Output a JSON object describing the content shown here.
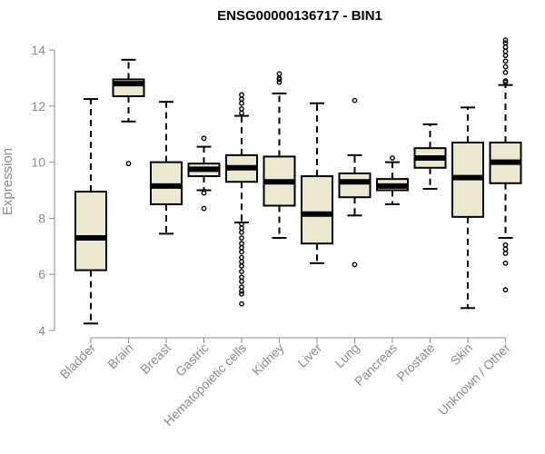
{
  "chart_data": {
    "type": "boxplot",
    "title": "ENSG00000136717 - BIN1",
    "xlabel": "",
    "ylabel": "Expression",
    "ylim": [
      4,
      14
    ],
    "yticks": [
      4,
      6,
      8,
      10,
      12,
      14
    ],
    "colors": {
      "box_fill": "#ede8d0",
      "stroke": "#000000",
      "axis": "#8a8a8a"
    },
    "categories": [
      "Bladder",
      "Brain",
      "Breast",
      "Gastric",
      "Hematopoietic cells",
      "Kidney",
      "Liver",
      "Lung",
      "Pancreas",
      "Prostate",
      "Skin",
      "Unknown / Other"
    ],
    "boxes": [
      {
        "name": "Bladder",
        "whisker_low": 4.25,
        "q1": 6.15,
        "median": 7.3,
        "q3": 8.95,
        "whisker_high": 12.25,
        "outliers": []
      },
      {
        "name": "Brain",
        "whisker_low": 11.45,
        "q1": 12.35,
        "median": 12.8,
        "q3": 12.95,
        "whisker_high": 13.65,
        "outliers": [
          9.95
        ]
      },
      {
        "name": "Breast",
        "whisker_low": 7.45,
        "q1": 8.5,
        "median": 9.15,
        "q3": 10.0,
        "whisker_high": 12.15,
        "outliers": []
      },
      {
        "name": "Gastric",
        "whisker_low": 9.0,
        "q1": 9.5,
        "median": 9.75,
        "q3": 9.95,
        "whisker_high": 10.55,
        "outliers": [
          10.85,
          8.9,
          8.35
        ]
      },
      {
        "name": "Hematopoietic cells",
        "whisker_low": 7.85,
        "q1": 9.3,
        "median": 9.8,
        "q3": 10.25,
        "whisker_high": 11.65,
        "outliers": [
          12.4,
          12.25,
          12.1,
          11.9,
          11.75,
          7.8,
          7.65,
          7.5,
          7.3,
          7.1,
          6.95,
          6.8,
          6.6,
          6.45,
          6.3,
          6.1,
          5.9,
          5.75,
          5.55,
          5.4,
          5.3,
          4.95
        ]
      },
      {
        "name": "Kidney",
        "whisker_low": 7.3,
        "q1": 8.45,
        "median": 9.3,
        "q3": 10.2,
        "whisker_high": 12.45,
        "outliers": [
          13.15,
          13.0,
          12.95,
          12.85
        ]
      },
      {
        "name": "Liver",
        "whisker_low": 6.4,
        "q1": 7.1,
        "median": 8.15,
        "q3": 9.5,
        "whisker_high": 12.1,
        "outliers": []
      },
      {
        "name": "Lung",
        "whisker_low": 8.1,
        "q1": 8.75,
        "median": 9.3,
        "q3": 9.6,
        "whisker_high": 10.25,
        "outliers": [
          12.2,
          6.35
        ]
      },
      {
        "name": "Pancreas",
        "whisker_low": 8.5,
        "q1": 9.0,
        "median": 9.15,
        "q3": 9.4,
        "whisker_high": 10.0,
        "outliers": [
          10.15
        ]
      },
      {
        "name": "Prostate",
        "whisker_low": 9.05,
        "q1": 9.8,
        "median": 10.15,
        "q3": 10.5,
        "whisker_high": 11.35,
        "outliers": []
      },
      {
        "name": "Skin",
        "whisker_low": 4.8,
        "q1": 8.05,
        "median": 9.45,
        "q3": 10.7,
        "whisker_high": 11.95,
        "outliers": []
      },
      {
        "name": "Unknown / Other",
        "whisker_low": 7.3,
        "q1": 9.25,
        "median": 10.0,
        "q3": 10.7,
        "whisker_high": 12.75,
        "outliers": [
          14.35,
          14.25,
          14.1,
          13.95,
          13.8,
          13.6,
          13.4,
          13.2,
          12.9,
          12.85,
          7.05,
          6.9,
          6.75,
          6.4,
          5.45
        ]
      }
    ]
  }
}
